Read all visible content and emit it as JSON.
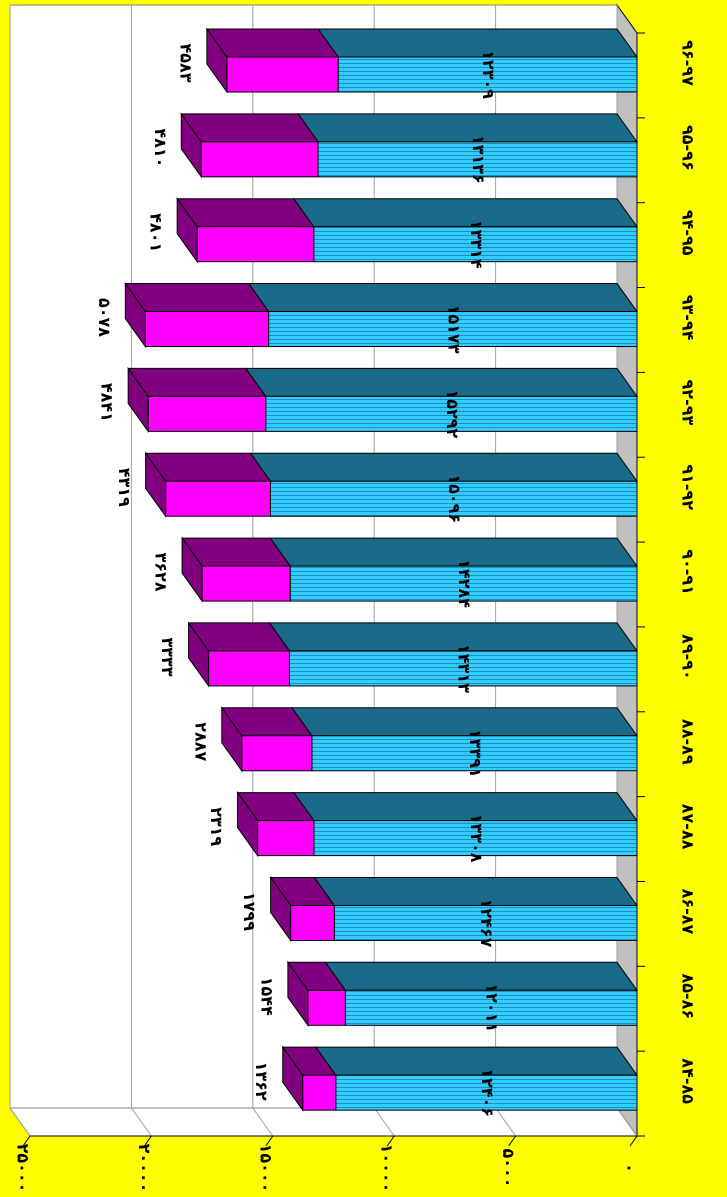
{
  "chart_data": {
    "type": "bar",
    "stacked": true,
    "orientation": "horizontal",
    "xaxis_reversed": true,
    "categories": [
      "۸۴-۸۵",
      "۸۵-۸۶",
      "۸۶-۸۷",
      "۸۷-۸۸",
      "۸۸-۸۹",
      "۸۹-۹۰",
      "۹۰-۹۱",
      "۹۱-۹۲",
      "۹۲-۹۳",
      "۹۳-۹۴",
      "۹۴-۹۵",
      "۹۵-۹۶",
      "۹۶-۹۷"
    ],
    "series": [
      {
        "color": "#33ccff",
        "values": [
          12406,
          12011,
          12467,
          13308,
          13391,
          14313,
          14284,
          15096,
          15292,
          15173,
          13314,
          13136,
          12309
        ],
        "value_labels": [
          "۱۲۴۰۶",
          "۱۲۰۱۱",
          "۱۲۴۶۷",
          "۱۳۳۰۸",
          "۱۳۳۹۱",
          "۱۴۳۱۳",
          "۱۴۲۸۴",
          "۱۵۰۹۶",
          "۱۵۲۹۲",
          "۱۵۱۷۳",
          "۱۳۳۱۴",
          "۱۳۱۳۶",
          "۱۲۳۰۹"
        ]
      },
      {
        "color": "#ff00ff",
        "values": [
          1362,
          1544,
          1799,
          2319,
          2887,
          3333,
          3628,
          4319,
          4841,
          5078,
          4801,
          4810,
          4583
        ],
        "value_labels": [
          "۱۳۶۲",
          "۱۵۴۴",
          "۱۷۹۹",
          "۲۳۱۹",
          "۲۸۸۷",
          "۳۳۳۳",
          "۳۶۲۸",
          "۴۳۱۹",
          "۴۸۴۱",
          "۵۰۷۸",
          "۴۸۰۱",
          "۴۸۱۰",
          "۴۵۸۳"
        ]
      }
    ],
    "xlim": [
      0,
      25000
    ],
    "xticks": [
      {
        "value": 0,
        "label": "۰"
      },
      {
        "value": 5000,
        "label": "۵۰۰۰"
      },
      {
        "value": 10000,
        "label": "۱۰۰۰۰"
      },
      {
        "value": 15000,
        "label": "۱۵۰۰۰"
      },
      {
        "value": 20000,
        "label": "۲۰۰۰۰"
      },
      {
        "value": 25000,
        "label": "۲۵۰۰۰"
      }
    ],
    "grid": true
  }
}
